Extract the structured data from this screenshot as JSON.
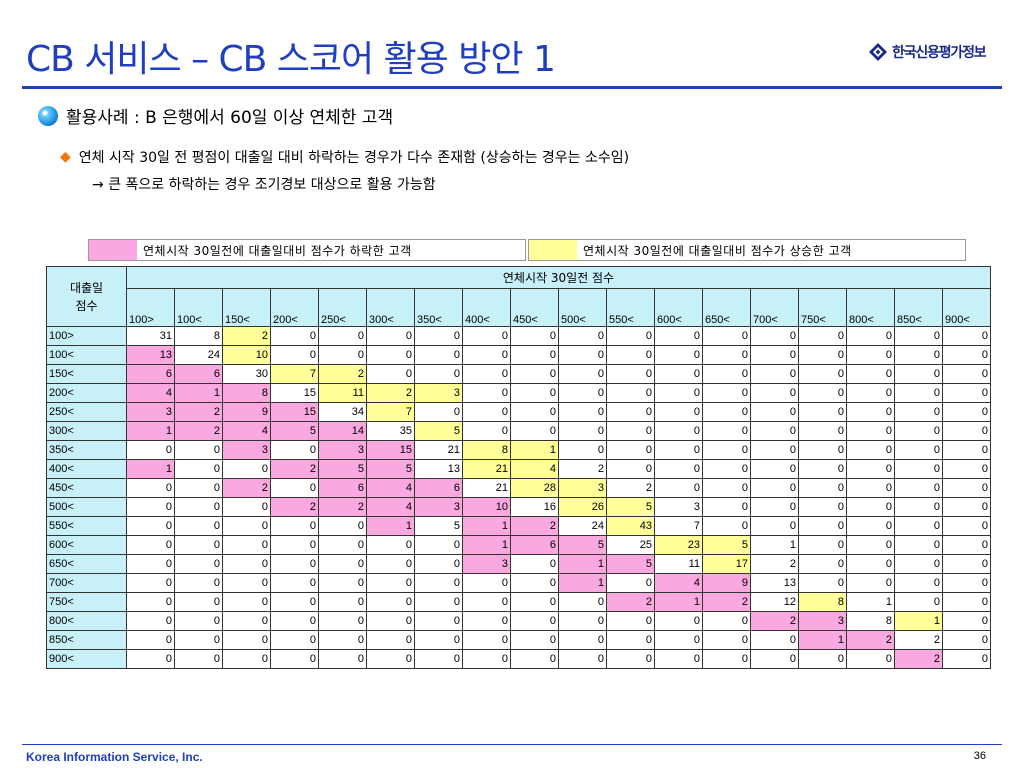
{
  "title": "CB 서비스 – CB 스코어 활용 방안 1",
  "logo_text": "한국신용평가정보",
  "subtitle": "활용사례 : B 은행에서 60일 이상 연체한 고객",
  "bullet_text": "연체 시작 30일 전 평점이 대출일 대비 하락하는 경우가 다수 존재함 (상승하는 경우는 소수임)",
  "arrow_text": "큰 폭으로 하락하는 경우 조기경보 대상으로 활용 가능함",
  "legend": {
    "pink_label": "연체시작 30일전에 대출일대비 점수가 하락한 고객",
    "yellow_label": "연체시작 30일전에 대출일대비 점수가 상승한 고객",
    "pink_color": "#f9a8e0",
    "yellow_color": "#ffff99",
    "header_color": "#c8f0f8"
  },
  "table": {
    "corner_label": "대출일\n점수",
    "top_header": "연체시작 30일전 점수",
    "col_headers": [
      "100>",
      "100<",
      "150<",
      "200<",
      "250<",
      "300<",
      "350<",
      "400<",
      "450<",
      "500<",
      "550<",
      "600<",
      "650<",
      "700<",
      "750<",
      "800<",
      "850<",
      "900<"
    ],
    "row_headers": [
      "100>",
      "100<",
      "150<",
      "200<",
      "250<",
      "300<",
      "350<",
      "400<",
      "450<",
      "500<",
      "550<",
      "600<",
      "650<",
      "700<",
      "750<",
      "800<",
      "850<",
      "900<"
    ],
    "values": [
      [
        31,
        8,
        2,
        0,
        0,
        0,
        0,
        0,
        0,
        0,
        0,
        0,
        0,
        0,
        0,
        0,
        0,
        0
      ],
      [
        13,
        24,
        10,
        0,
        0,
        0,
        0,
        0,
        0,
        0,
        0,
        0,
        0,
        0,
        0,
        0,
        0,
        0
      ],
      [
        6,
        6,
        30,
        7,
        2,
        0,
        0,
        0,
        0,
        0,
        0,
        0,
        0,
        0,
        0,
        0,
        0,
        0
      ],
      [
        4,
        1,
        8,
        15,
        11,
        2,
        3,
        0,
        0,
        0,
        0,
        0,
        0,
        0,
        0,
        0,
        0,
        0
      ],
      [
        3,
        2,
        9,
        15,
        34,
        7,
        0,
        0,
        0,
        0,
        0,
        0,
        0,
        0,
        0,
        0,
        0,
        0
      ],
      [
        1,
        2,
        4,
        5,
        14,
        35,
        5,
        0,
        0,
        0,
        0,
        0,
        0,
        0,
        0,
        0,
        0,
        0
      ],
      [
        0,
        0,
        3,
        0,
        3,
        15,
        21,
        8,
        1,
        0,
        0,
        0,
        0,
        0,
        0,
        0,
        0,
        0
      ],
      [
        1,
        0,
        0,
        2,
        5,
        5,
        13,
        21,
        4,
        2,
        0,
        0,
        0,
        0,
        0,
        0,
        0,
        0
      ],
      [
        0,
        0,
        2,
        0,
        6,
        4,
        6,
        21,
        28,
        3,
        2,
        0,
        0,
        0,
        0,
        0,
        0,
        0
      ],
      [
        0,
        0,
        0,
        2,
        2,
        4,
        3,
        10,
        16,
        26,
        5,
        3,
        0,
        0,
        0,
        0,
        0,
        0
      ],
      [
        0,
        0,
        0,
        0,
        0,
        1,
        5,
        1,
        2,
        24,
        43,
        7,
        0,
        0,
        0,
        0,
        0,
        0
      ],
      [
        0,
        0,
        0,
        0,
        0,
        0,
        0,
        1,
        6,
        5,
        25,
        23,
        5,
        1,
        0,
        0,
        0,
        0
      ],
      [
        0,
        0,
        0,
        0,
        0,
        0,
        0,
        3,
        0,
        1,
        5,
        11,
        17,
        2,
        0,
        0,
        0,
        0
      ],
      [
        0,
        0,
        0,
        0,
        0,
        0,
        0,
        0,
        0,
        1,
        0,
        4,
        9,
        13,
        0,
        0,
        0,
        0
      ],
      [
        0,
        0,
        0,
        0,
        0,
        0,
        0,
        0,
        0,
        0,
        2,
        1,
        2,
        12,
        8,
        1,
        0,
        0
      ],
      [
        0,
        0,
        0,
        0,
        0,
        0,
        0,
        0,
        0,
        0,
        0,
        0,
        0,
        2,
        3,
        8,
        1,
        0
      ],
      [
        0,
        0,
        0,
        0,
        0,
        0,
        0,
        0,
        0,
        0,
        0,
        0,
        0,
        0,
        1,
        2,
        2,
        0
      ],
      [
        0,
        0,
        0,
        0,
        0,
        0,
        0,
        0,
        0,
        0,
        0,
        0,
        0,
        0,
        0,
        0,
        2,
        0
      ]
    ],
    "highlight_note": "p = pink (lower score 30 days before delinquency), y = yellow (higher score)",
    "highlights": [
      "..y...............",
      "p.y...............",
      "pp.yy.............",
      "ppp.yyy...........",
      "pppp.y............",
      "ppppp.y...........",
      "..p.pp.yy.........",
      "p..ppp.yy.........",
      "..p.ppp.yy........",
      "...ppppp.yy.......",
      ".....p.pp.y.......",
      ".......ppp.yy.....",
      ".......p.pp.y.....",
      ".........p.pp.....",
      "..........ppp.y...",
      ".............pp.y.",
      "..............pp..",
      "................p."
    ]
  },
  "footer": {
    "company": "Korea Information Service, Inc.",
    "page_number": "36"
  }
}
